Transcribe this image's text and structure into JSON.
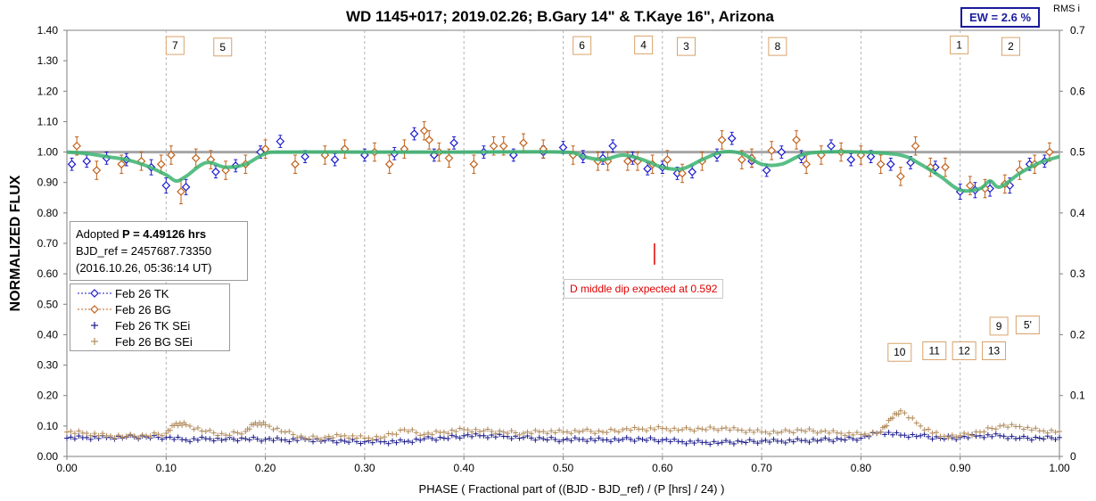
{
  "chart_data": {
    "type": "scatter",
    "title": "WD 1145+017; 2019.02.26; B.Gary 14\" & T.Kaye 16\", Arizona",
    "xlabel": "PHASE ( Fractional part of ((BJD - BJD_ref) / (P [hrs] / 24) )",
    "ylabel": "NORMALIZED FLUX",
    "y2label": "RMS i",
    "xlim": [
      0.0,
      1.0
    ],
    "ylim": [
      0.0,
      1.4
    ],
    "y2lim": [
      0.0,
      0.7
    ],
    "x_ticks": [
      "0.00",
      "0.10",
      "0.20",
      "0.30",
      "0.40",
      "0.50",
      "0.60",
      "0.70",
      "0.80",
      "0.90",
      "1.00"
    ],
    "y_ticks": [
      "0.00",
      "0.10",
      "0.20",
      "0.30",
      "0.40",
      "0.50",
      "0.60",
      "0.70",
      "0.80",
      "0.90",
      "1.00",
      "1.10",
      "1.20",
      "1.30",
      "1.40"
    ],
    "y2_ticks": [
      "0",
      "0.1",
      "0.2",
      "0.3",
      "0.4",
      "0.5",
      "0.6",
      "0.7"
    ],
    "grid": true,
    "legend_position": "left-middle",
    "ew_label": "EW =  2.6 %",
    "info_box": {
      "line1_prefix": "Adopted ",
      "line1_bold": "P = 4.49126 hrs",
      "line2": "BJD_ref = 2457687.73350",
      "line3": "(2016.10.26, 05:36:14 UT)"
    },
    "dip_note": "D middle dip expected at 0.592",
    "dip_marker": {
      "x": 0.592,
      "y_from": 0.63,
      "y_to": 0.7
    },
    "reference_line": 1.0,
    "dip_labels": [
      {
        "text": "7",
        "x": 0.109,
        "y": 1.35
      },
      {
        "text": "5",
        "x": 0.157,
        "y": 1.345
      },
      {
        "text": "6",
        "x": 0.519,
        "y": 1.35
      },
      {
        "text": "4",
        "x": 0.581,
        "y": 1.352
      },
      {
        "text": "3",
        "x": 0.624,
        "y": 1.347
      },
      {
        "text": "8",
        "x": 0.716,
        "y": 1.347
      },
      {
        "text": "1",
        "x": 0.899,
        "y": 1.352
      },
      {
        "text": "2",
        "x": 0.951,
        "y": 1.347
      },
      {
        "text": "9",
        "x": 0.939,
        "y": 0.428
      },
      {
        "text": "5'",
        "x": 0.968,
        "y": 0.432
      },
      {
        "text": "10",
        "x": 0.839,
        "y": 0.342
      },
      {
        "text": "11",
        "x": 0.874,
        "y": 0.347
      },
      {
        "text": "12",
        "x": 0.904,
        "y": 0.347
      },
      {
        "text": "13",
        "x": 0.934,
        "y": 0.347
      }
    ],
    "model_curve": {
      "name": "",
      "color": "#3cb371",
      "x": [
        0.0,
        0.02,
        0.04,
        0.06,
        0.08,
        0.1,
        0.11,
        0.12,
        0.14,
        0.16,
        0.18,
        0.2,
        0.22,
        0.3,
        0.4,
        0.5,
        0.52,
        0.54,
        0.56,
        0.58,
        0.6,
        0.62,
        0.64,
        0.66,
        0.68,
        0.7,
        0.72,
        0.74,
        0.76,
        0.8,
        0.84,
        0.86,
        0.88,
        0.9,
        0.92,
        0.93,
        0.94,
        0.96,
        0.98,
        1.0
      ],
      "y": [
        1.0,
        0.995,
        0.985,
        0.975,
        0.955,
        0.925,
        0.905,
        0.92,
        0.965,
        0.95,
        0.96,
        0.995,
        1.0,
        1.0,
        1.0,
        1.0,
        0.985,
        0.975,
        0.99,
        0.975,
        0.95,
        0.945,
        0.975,
        1.0,
        0.995,
        0.96,
        0.96,
        0.99,
        1.0,
        1.0,
        0.99,
        0.96,
        0.92,
        0.875,
        0.88,
        0.905,
        0.885,
        0.93,
        0.965,
        0.985
      ]
    },
    "series": [
      {
        "name": "Feb 26 TK",
        "color": "#1a1acd",
        "marker": "diamond",
        "x": [
          0.005,
          0.02,
          0.04,
          0.06,
          0.085,
          0.1,
          0.12,
          0.15,
          0.17,
          0.195,
          0.215,
          0.24,
          0.27,
          0.3,
          0.33,
          0.35,
          0.37,
          0.39,
          0.42,
          0.45,
          0.48,
          0.5,
          0.52,
          0.54,
          0.55,
          0.57,
          0.585,
          0.6,
          0.615,
          0.63,
          0.655,
          0.67,
          0.69,
          0.705,
          0.72,
          0.74,
          0.77,
          0.79,
          0.81,
          0.83,
          0.85,
          0.875,
          0.9,
          0.915,
          0.93,
          0.95,
          0.97,
          0.985
        ],
        "y": [
          0.96,
          0.97,
          0.98,
          0.975,
          0.95,
          0.89,
          0.885,
          0.935,
          0.955,
          1.0,
          1.035,
          0.985,
          0.975,
          0.99,
          0.995,
          1.06,
          0.99,
          1.03,
          1.0,
          0.99,
          1.0,
          1.015,
          0.985,
          0.98,
          1.02,
          0.98,
          0.945,
          0.95,
          0.93,
          0.935,
          0.99,
          1.045,
          0.97,
          0.94,
          1.0,
          0.985,
          1.02,
          0.975,
          0.985,
          0.96,
          0.965,
          0.95,
          0.87,
          0.875,
          0.88,
          0.89,
          0.96,
          0.97
        ],
        "err": [
          0.02,
          0.02,
          0.02,
          0.02,
          0.025,
          0.025,
          0.025,
          0.02,
          0.02,
          0.02,
          0.02,
          0.02,
          0.02,
          0.02,
          0.02,
          0.02,
          0.02,
          0.02,
          0.02,
          0.02,
          0.02,
          0.02,
          0.02,
          0.02,
          0.02,
          0.02,
          0.02,
          0.02,
          0.02,
          0.02,
          0.02,
          0.02,
          0.02,
          0.02,
          0.02,
          0.02,
          0.02,
          0.02,
          0.02,
          0.02,
          0.02,
          0.02,
          0.025,
          0.025,
          0.025,
          0.025,
          0.02,
          0.02
        ]
      },
      {
        "name": "Feb 26 BG",
        "color": "#c0601a",
        "marker": "diamond",
        "x": [
          0.01,
          0.03,
          0.055,
          0.075,
          0.095,
          0.105,
          0.115,
          0.13,
          0.145,
          0.16,
          0.18,
          0.2,
          0.23,
          0.26,
          0.28,
          0.31,
          0.325,
          0.34,
          0.36,
          0.365,
          0.375,
          0.385,
          0.41,
          0.43,
          0.44,
          0.46,
          0.48,
          0.51,
          0.535,
          0.545,
          0.565,
          0.575,
          0.59,
          0.605,
          0.62,
          0.64,
          0.66,
          0.68,
          0.69,
          0.71,
          0.735,
          0.745,
          0.76,
          0.78,
          0.8,
          0.82,
          0.84,
          0.855,
          0.87,
          0.885,
          0.91,
          0.925,
          0.945,
          0.96,
          0.975,
          0.99
        ],
        "y": [
          1.02,
          0.94,
          0.96,
          0.97,
          0.96,
          0.99,
          0.87,
          0.98,
          0.975,
          0.94,
          0.96,
          1.01,
          0.96,
          0.99,
          1.01,
          1.0,
          0.96,
          1.01,
          1.07,
          1.04,
          1.0,
          0.98,
          0.96,
          1.02,
          1.02,
          1.03,
          1.01,
          0.99,
          0.97,
          0.97,
          0.97,
          0.97,
          0.96,
          0.975,
          0.93,
          0.97,
          1.04,
          0.975,
          0.98,
          1.005,
          1.04,
          0.96,
          0.99,
          1.0,
          0.99,
          0.96,
          0.92,
          1.02,
          0.95,
          0.95,
          0.89,
          0.88,
          0.895,
          0.94,
          0.96,
          1.0
        ],
        "err": [
          0.03,
          0.03,
          0.03,
          0.03,
          0.03,
          0.03,
          0.04,
          0.03,
          0.03,
          0.03,
          0.03,
          0.03,
          0.03,
          0.03,
          0.03,
          0.03,
          0.03,
          0.03,
          0.03,
          0.03,
          0.03,
          0.03,
          0.03,
          0.03,
          0.03,
          0.03,
          0.03,
          0.03,
          0.03,
          0.03,
          0.03,
          0.03,
          0.03,
          0.03,
          0.03,
          0.03,
          0.03,
          0.03,
          0.03,
          0.03,
          0.03,
          0.03,
          0.03,
          0.03,
          0.03,
          0.03,
          0.03,
          0.03,
          0.03,
          0.03,
          0.03,
          0.03,
          0.03,
          0.03,
          0.03,
          0.03
        ]
      },
      {
        "name": "Feb 26 TK SEi",
        "color": "#1a1a8a",
        "marker": "plus",
        "axis": "right",
        "x": [
          0.0,
          0.02,
          0.04,
          0.06,
          0.08,
          0.1,
          0.12,
          0.14,
          0.16,
          0.18,
          0.2,
          0.22,
          0.24,
          0.26,
          0.28,
          0.3,
          0.32,
          0.34,
          0.36,
          0.38,
          0.4,
          0.42,
          0.44,
          0.46,
          0.48,
          0.5,
          0.52,
          0.54,
          0.56,
          0.58,
          0.6,
          0.62,
          0.64,
          0.66,
          0.68,
          0.7,
          0.72,
          0.74,
          0.76,
          0.78,
          0.8,
          0.82,
          0.84,
          0.86,
          0.88,
          0.9,
          0.92,
          0.94,
          0.96,
          0.98,
          1.0
        ],
        "y": [
          0.03,
          0.031,
          0.031,
          0.032,
          0.032,
          0.031,
          0.027,
          0.029,
          0.028,
          0.029,
          0.028,
          0.027,
          0.028,
          0.026,
          0.025,
          0.024,
          0.024,
          0.024,
          0.029,
          0.03,
          0.034,
          0.034,
          0.033,
          0.031,
          0.029,
          0.027,
          0.028,
          0.027,
          0.028,
          0.028,
          0.027,
          0.024,
          0.023,
          0.023,
          0.024,
          0.025,
          0.025,
          0.026,
          0.027,
          0.028,
          0.03,
          0.04,
          0.035,
          0.034,
          0.03,
          0.031,
          0.034,
          0.034,
          0.03,
          0.03,
          0.031
        ]
      },
      {
        "name": "Feb 26 BG SEi",
        "color": "#b08a5a",
        "marker": "plus",
        "axis": "right",
        "x": [
          0.0,
          0.02,
          0.04,
          0.06,
          0.08,
          0.1,
          0.11,
          0.12,
          0.14,
          0.16,
          0.18,
          0.19,
          0.2,
          0.22,
          0.24,
          0.26,
          0.28,
          0.3,
          0.32,
          0.34,
          0.36,
          0.38,
          0.4,
          0.42,
          0.44,
          0.46,
          0.48,
          0.5,
          0.52,
          0.54,
          0.56,
          0.58,
          0.6,
          0.62,
          0.64,
          0.66,
          0.68,
          0.7,
          0.72,
          0.74,
          0.76,
          0.78,
          0.8,
          0.82,
          0.83,
          0.84,
          0.86,
          0.88,
          0.9,
          0.92,
          0.94,
          0.96,
          0.98,
          1.0
        ],
        "y": [
          0.04,
          0.038,
          0.034,
          0.033,
          0.034,
          0.038,
          0.054,
          0.052,
          0.041,
          0.035,
          0.041,
          0.055,
          0.052,
          0.04,
          0.03,
          0.031,
          0.034,
          0.03,
          0.032,
          0.044,
          0.036,
          0.04,
          0.044,
          0.042,
          0.04,
          0.038,
          0.041,
          0.04,
          0.042,
          0.04,
          0.044,
          0.045,
          0.046,
          0.044,
          0.045,
          0.046,
          0.043,
          0.04,
          0.04,
          0.043,
          0.041,
          0.038,
          0.036,
          0.04,
          0.062,
          0.075,
          0.05,
          0.033,
          0.034,
          0.04,
          0.05,
          0.049,
          0.042,
          0.041
        ]
      }
    ]
  }
}
